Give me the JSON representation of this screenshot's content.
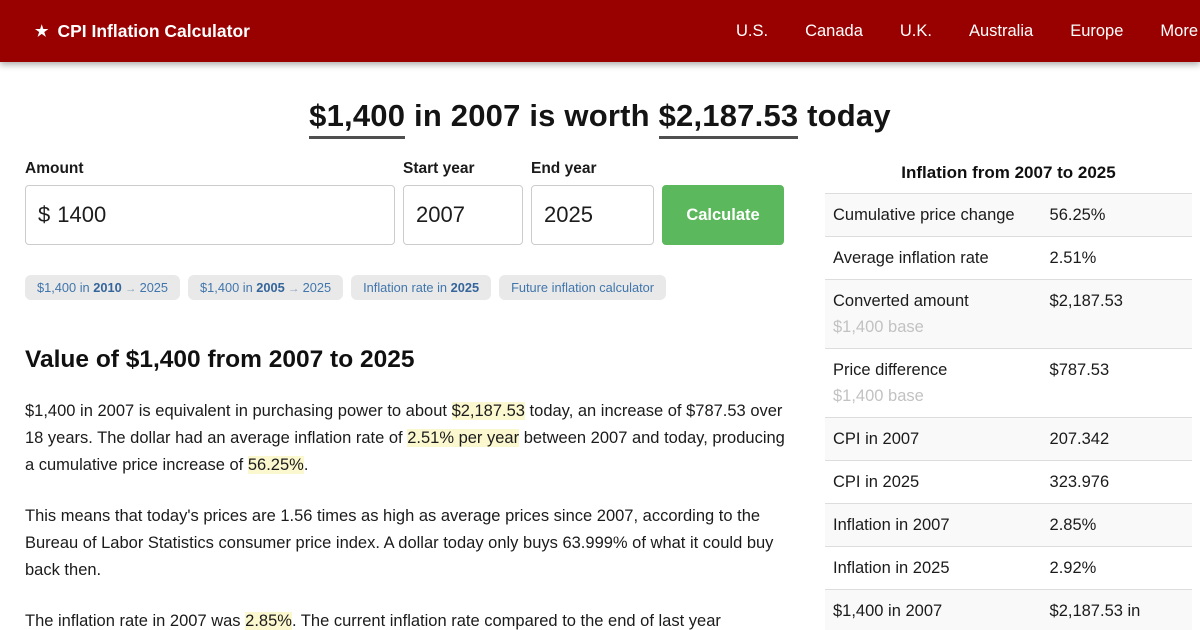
{
  "colors": {
    "navbar_red": "#990000",
    "button_green": "#5cb85c",
    "highlight_yellow": "#fbf7cf",
    "chip_text_blue": "#4176ac",
    "stripe_gray": "#f9f9f9"
  },
  "navbar": {
    "star_icon": "★",
    "brand": "CPI Inflation Calculator",
    "links": [
      "U.S.",
      "Canada",
      "U.K.",
      "Australia",
      "Europe",
      "More"
    ]
  },
  "headline": {
    "amount": "$1,400",
    "mid": " in 2007 is worth ",
    "converted": "$2,187.53",
    "tail": " today"
  },
  "form": {
    "amount_label": "Amount",
    "currency_symbol": "$",
    "amount_value": "1400",
    "start_year_label": "Start year",
    "start_year_value": "2007",
    "end_year_label": "End year",
    "end_year_value": "2025",
    "calculate_label": "Calculate"
  },
  "chips": [
    {
      "pre": "$1,400 in ",
      "bold": "2010",
      "arrow": " → ",
      "post": "2025"
    },
    {
      "pre": "$1,400 in ",
      "bold": "2005",
      "arrow": " → ",
      "post": "2025"
    },
    {
      "pre": "Inflation rate in ",
      "bold": "2025",
      "arrow": "",
      "post": ""
    },
    {
      "pre": "Future inflation calculator",
      "bold": "",
      "arrow": "",
      "post": ""
    }
  ],
  "article": {
    "heading": "Value of $1,400 from 2007 to 2025",
    "p1": [
      {
        "t": "$1,400 in 2007 is equivalent in purchasing power to about "
      },
      {
        "t": "$2,187.53"
      },
      {
        "t": " today, an increase of $787.53 over 18 years. The dollar had an average inflation rate of "
      },
      {
        "t": "2.51% per year"
      },
      {
        "t": " between 2007 and today, producing a cumulative price increase of "
      },
      {
        "t": "56.25%"
      },
      {
        "t": "."
      }
    ],
    "p2": "This means that today's prices are 1.56 times as high as average prices since 2007, according to the Bureau of Labor Statistics consumer price index. A dollar today only buys 63.999% of what it could buy back then.",
    "p3": [
      {
        "t": "The inflation rate in 2007 was "
      },
      {
        "t": "2.85%"
      },
      {
        "t": ". The current inflation rate compared to the end of last year"
      }
    ]
  },
  "sidebar": {
    "title": "Inflation from 2007 to 2025",
    "rows": [
      {
        "label": "Cumulative price change",
        "value": "56.25%"
      },
      {
        "label": "Average inflation rate",
        "value": "2.51%"
      },
      {
        "label": "Converted amount",
        "sub": "$1,400 base",
        "value": "$2,187.53"
      },
      {
        "label": "Price difference",
        "sub": "$1,400 base",
        "value": "$787.53"
      },
      {
        "label": "CPI in 2007",
        "value": "207.342"
      },
      {
        "label": "CPI in 2025",
        "value": "323.976"
      },
      {
        "label": "Inflation in 2007",
        "value": "2.85%"
      },
      {
        "label": "Inflation in 2025",
        "value": "2.92%"
      },
      {
        "label": "$1,400 in 2007",
        "value": "$2,187.53 in"
      }
    ]
  }
}
